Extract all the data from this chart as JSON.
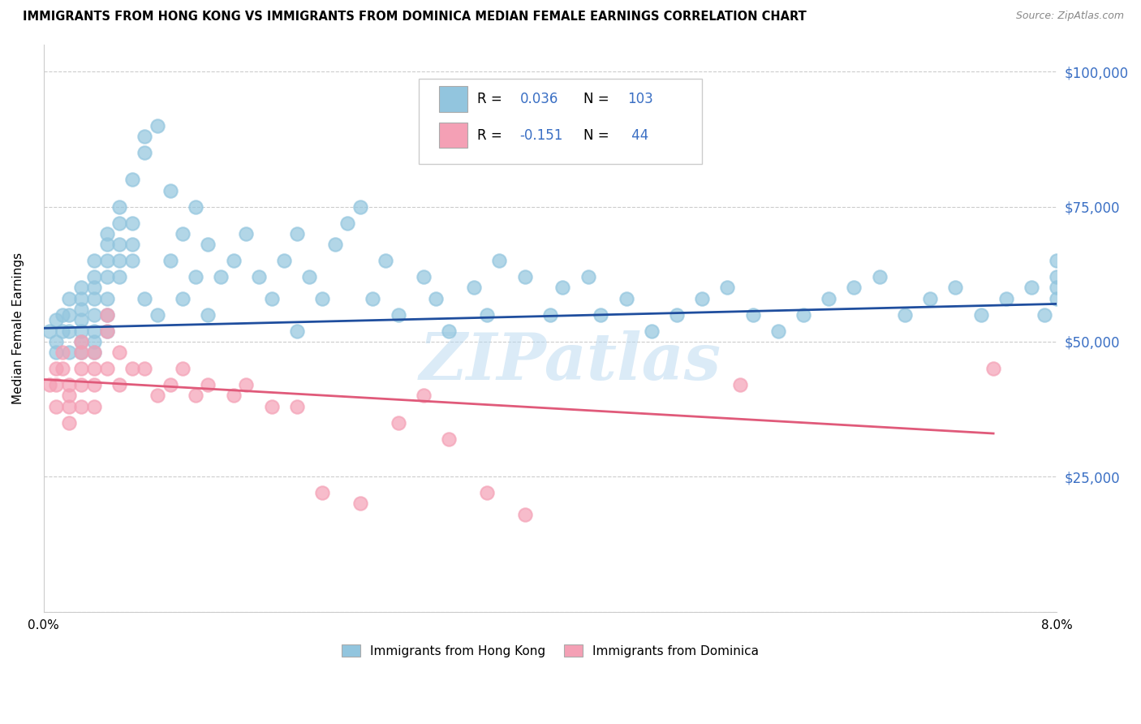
{
  "title": "IMMIGRANTS FROM HONG KONG VS IMMIGRANTS FROM DOMINICA MEDIAN FEMALE EARNINGS CORRELATION CHART",
  "source": "Source: ZipAtlas.com",
  "ylabel": "Median Female Earnings",
  "xlim": [
    0.0,
    0.08
  ],
  "ylim": [
    0,
    105000
  ],
  "xticks": [
    0.0,
    0.01,
    0.02,
    0.03,
    0.04,
    0.05,
    0.06,
    0.07,
    0.08
  ],
  "xticklabels": [
    "0.0%",
    "",
    "",
    "",
    "",
    "",
    "",
    "",
    "8.0%"
  ],
  "yticks": [
    0,
    25000,
    50000,
    75000,
    100000
  ],
  "yticklabels": [
    "",
    "$25,000",
    "$50,000",
    "$75,000",
    "$100,000"
  ],
  "hk_color": "#92c5de",
  "dom_color": "#f4a0b5",
  "hk_line_color": "#1f4e9e",
  "dom_line_color": "#e05a7a",
  "hk_R": 0.036,
  "hk_N": 103,
  "dom_R": -0.151,
  "dom_N": 44,
  "legend_label_hk": "Immigrants from Hong Kong",
  "legend_label_dom": "Immigrants from Dominica",
  "background_color": "#ffffff",
  "grid_color": "#cccccc",
  "watermark": "ZIPatlas",
  "hk_x": [
    0.0005,
    0.001,
    0.001,
    0.001,
    0.0015,
    0.0015,
    0.002,
    0.002,
    0.002,
    0.002,
    0.003,
    0.003,
    0.003,
    0.003,
    0.003,
    0.003,
    0.003,
    0.004,
    0.004,
    0.004,
    0.004,
    0.004,
    0.004,
    0.004,
    0.004,
    0.005,
    0.005,
    0.005,
    0.005,
    0.005,
    0.005,
    0.005,
    0.006,
    0.006,
    0.006,
    0.006,
    0.006,
    0.007,
    0.007,
    0.007,
    0.007,
    0.008,
    0.008,
    0.008,
    0.009,
    0.009,
    0.01,
    0.01,
    0.011,
    0.011,
    0.012,
    0.012,
    0.013,
    0.013,
    0.014,
    0.015,
    0.016,
    0.017,
    0.018,
    0.019,
    0.02,
    0.02,
    0.021,
    0.022,
    0.023,
    0.024,
    0.025,
    0.026,
    0.027,
    0.028,
    0.03,
    0.031,
    0.032,
    0.034,
    0.035,
    0.036,
    0.038,
    0.04,
    0.041,
    0.043,
    0.044,
    0.046,
    0.048,
    0.05,
    0.052,
    0.054,
    0.056,
    0.058,
    0.06,
    0.062,
    0.064,
    0.066,
    0.068,
    0.07,
    0.072,
    0.074,
    0.076,
    0.078,
    0.079,
    0.08,
    0.08,
    0.08,
    0.08
  ],
  "hk_y": [
    52000,
    54000,
    50000,
    48000,
    55000,
    52000,
    58000,
    55000,
    52000,
    48000,
    60000,
    58000,
    56000,
    54000,
    52000,
    50000,
    48000,
    65000,
    62000,
    60000,
    58000,
    55000,
    52000,
    50000,
    48000,
    70000,
    68000,
    65000,
    62000,
    58000,
    55000,
    52000,
    75000,
    72000,
    68000,
    65000,
    62000,
    80000,
    72000,
    68000,
    65000,
    88000,
    85000,
    58000,
    90000,
    55000,
    78000,
    65000,
    70000,
    58000,
    75000,
    62000,
    68000,
    55000,
    62000,
    65000,
    70000,
    62000,
    58000,
    65000,
    70000,
    52000,
    62000,
    58000,
    68000,
    72000,
    75000,
    58000,
    65000,
    55000,
    62000,
    58000,
    52000,
    60000,
    55000,
    65000,
    62000,
    55000,
    60000,
    62000,
    55000,
    58000,
    52000,
    55000,
    58000,
    60000,
    55000,
    52000,
    55000,
    58000,
    60000,
    62000,
    55000,
    58000,
    60000,
    55000,
    58000,
    60000,
    55000,
    58000,
    60000,
    62000,
    65000
  ],
  "dom_x": [
    0.0005,
    0.001,
    0.001,
    0.001,
    0.0015,
    0.0015,
    0.002,
    0.002,
    0.002,
    0.002,
    0.003,
    0.003,
    0.003,
    0.003,
    0.003,
    0.004,
    0.004,
    0.004,
    0.004,
    0.005,
    0.005,
    0.005,
    0.006,
    0.006,
    0.007,
    0.008,
    0.009,
    0.01,
    0.011,
    0.012,
    0.013,
    0.015,
    0.016,
    0.018,
    0.02,
    0.022,
    0.025,
    0.028,
    0.03,
    0.032,
    0.035,
    0.038,
    0.055,
    0.075
  ],
  "dom_y": [
    42000,
    45000,
    42000,
    38000,
    48000,
    45000,
    42000,
    40000,
    38000,
    35000,
    50000,
    48000,
    45000,
    42000,
    38000,
    48000,
    45000,
    42000,
    38000,
    55000,
    52000,
    45000,
    48000,
    42000,
    45000,
    45000,
    40000,
    42000,
    45000,
    40000,
    42000,
    40000,
    42000,
    38000,
    38000,
    22000,
    20000,
    35000,
    40000,
    32000,
    22000,
    18000,
    42000,
    45000
  ]
}
